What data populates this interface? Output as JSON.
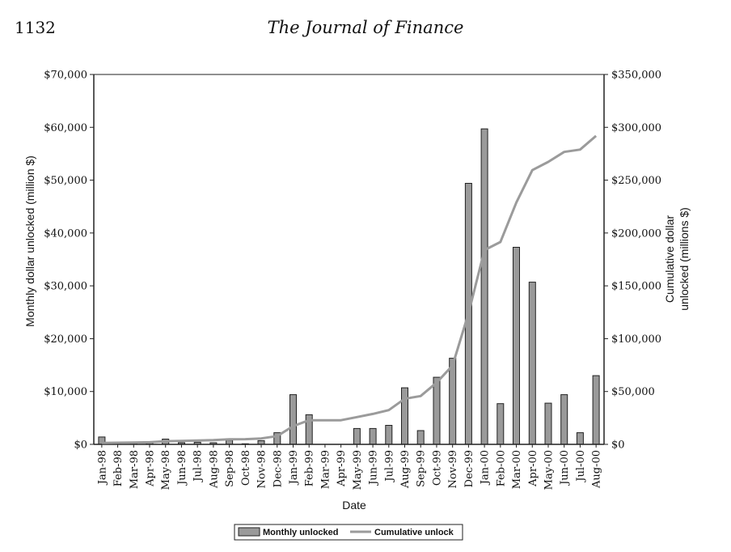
{
  "page": {
    "number": "1132",
    "journal": "The Journal of Finance"
  },
  "colors": {
    "bar": "#9a9a9a",
    "line": "#9b9b9b",
    "axis": "#222222"
  },
  "chart_data": {
    "type": "bar",
    "xlabel": "Date",
    "ylabel_left": "Monthly dollar unlocked (million $)",
    "ylabel_right_lines": [
      "Cumulative dollar",
      "unlocked (millions $)"
    ],
    "ylim_left": [
      0,
      70000
    ],
    "ylim_right": [
      0,
      350000
    ],
    "left_ticks": [
      0,
      10000,
      20000,
      30000,
      40000,
      50000,
      60000,
      70000
    ],
    "left_tick_labels": [
      "$0",
      "$10,000",
      "$20,000",
      "$30,000",
      "$40,000",
      "$50,000",
      "$60,000",
      "$70,000"
    ],
    "right_ticks": [
      0,
      50000,
      100000,
      150000,
      200000,
      250000,
      300000,
      350000
    ],
    "right_tick_labels": [
      "$0",
      "$50,000",
      "$100,000",
      "$150,000",
      "$200,000",
      "$250,000",
      "$300,000",
      "$350,000"
    ],
    "categories": [
      "Jan-98",
      "Feb-98",
      "Mar-98",
      "Apr-98",
      "May-98",
      "Jun-98",
      "Jul-98",
      "Aug-98",
      "Sep-98",
      "Oct-98",
      "Nov-98",
      "Dec-98",
      "Jan-99",
      "Feb-99",
      "Mar-99",
      "Apr-99",
      "May-99",
      "Jun-99",
      "Jul-99",
      "Aug-99",
      "Sep-99",
      "Oct-99",
      "Nov-99",
      "Dec-99",
      "Jan-00",
      "Feb-00",
      "Mar-00",
      "Apr-00",
      "May-00",
      "Jun-00",
      "Jul-00",
      "Aug-00"
    ],
    "series": [
      {
        "name": "Monthly unlocked",
        "type": "bar",
        "axis": "left",
        "values": [
          1400,
          100,
          200,
          300,
          1000,
          300,
          400,
          300,
          800,
          100,
          700,
          2200,
          9400,
          5600,
          0,
          0,
          3000,
          3000,
          3600,
          10700,
          2600,
          12700,
          16300,
          49400,
          59700,
          7700,
          37300,
          30700,
          7800,
          9400,
          2200,
          13000
        ]
      },
      {
        "name": "Cumulative unlock",
        "type": "line",
        "axis": "right",
        "values": [
          1400,
          1500,
          1700,
          2000,
          3000,
          3300,
          3700,
          4000,
          4800,
          4900,
          5600,
          7800,
          17200,
          22800,
          22800,
          22800,
          25800,
          28800,
          32400,
          43100,
          45700,
          58400,
          74700,
          124100,
          183800,
          191500,
          228800,
          259500,
          267300,
          276700,
          278900,
          291900
        ]
      }
    ],
    "legend": "bottom-center"
  }
}
